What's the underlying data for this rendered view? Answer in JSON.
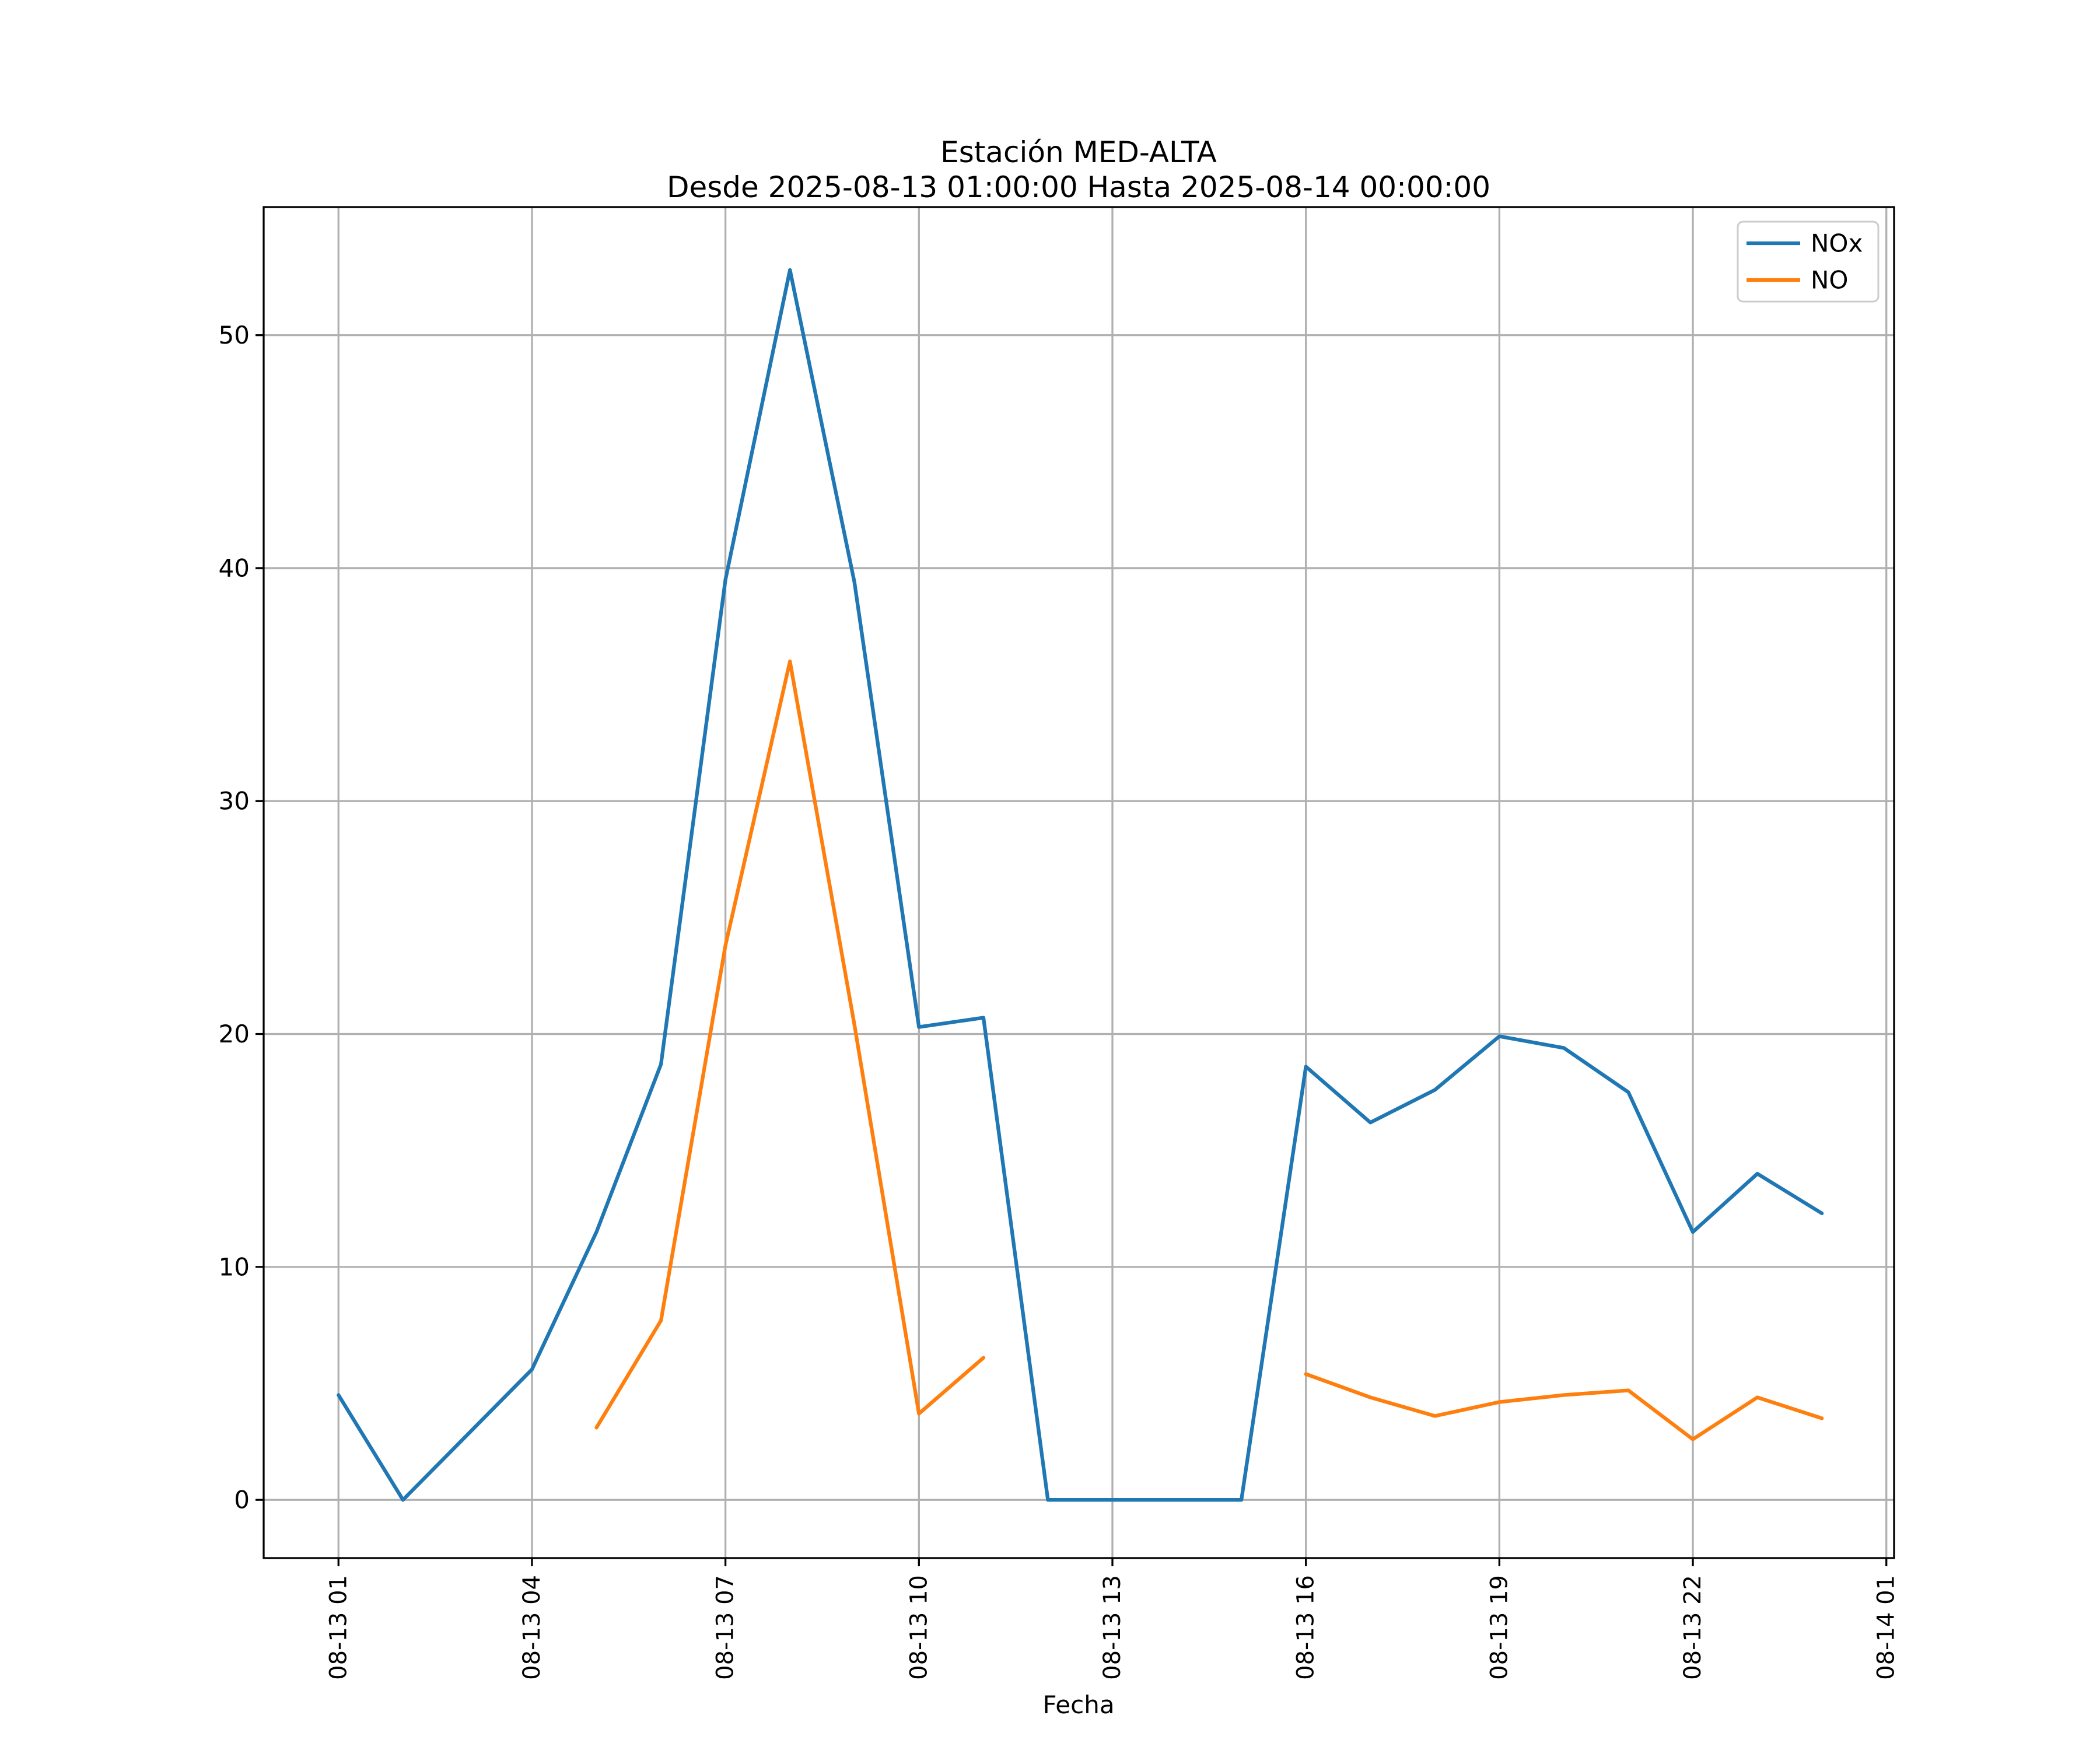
{
  "chart_data": {
    "type": "line",
    "title": "Estación MED-ALTA",
    "subtitle": "Desde 2025-08-13 01:00:00 Hasta 2025-08-14 00:00:00",
    "xlabel": "Fecha",
    "ylabel": "",
    "grid": true,
    "grid_color": "#b0b0b0",
    "spine_color": "#000000",
    "background_color": "#ffffff",
    "legend": {
      "position": "upper right",
      "entries": [
        {
          "label": "NOx",
          "color": "#1f77b4"
        },
        {
          "label": "NO",
          "color": "#ff7f0e"
        }
      ]
    },
    "x_axis": {
      "tick_hours": [
        1,
        4,
        7,
        10,
        13,
        16,
        19,
        22,
        25
      ],
      "tick_labels": [
        "08-13 01",
        "08-13 04",
        "08-13 07",
        "08-13 10",
        "08-13 13",
        "08-13 16",
        "08-13 19",
        "08-13 22",
        "08-14 01"
      ],
      "lim_hours": [
        -0.16,
        25.12
      ],
      "label_rotation_deg": 90
    },
    "y_axis": {
      "ticks": [
        0,
        10,
        20,
        30,
        40,
        50
      ],
      "lim": [
        -2.5,
        55.5
      ]
    },
    "series": [
      {
        "name": "NOx",
        "color": "#1f77b4",
        "segments": [
          [
            [
              1,
              4.5
            ],
            [
              2,
              0.0
            ],
            [
              3,
              2.8
            ],
            [
              4,
              5.6
            ],
            [
              5,
              11.5
            ],
            [
              6,
              18.7
            ],
            [
              7,
              39.5
            ],
            [
              8,
              52.8
            ],
            [
              9,
              39.4
            ],
            [
              10,
              20.3
            ],
            [
              11,
              20.7
            ],
            [
              12,
              0.0
            ],
            [
              13,
              0.0
            ],
            [
              14,
              0.0
            ],
            [
              15,
              0.0
            ],
            [
              16,
              18.6
            ],
            [
              17,
              16.2
            ],
            [
              18,
              17.6
            ],
            [
              19,
              19.9
            ],
            [
              20,
              19.4
            ],
            [
              21,
              17.5
            ],
            [
              22,
              11.5
            ],
            [
              23,
              14.0
            ],
            [
              24,
              12.3
            ]
          ]
        ]
      },
      {
        "name": "NO",
        "color": "#ff7f0e",
        "segments": [
          [
            [
              5,
              3.1
            ],
            [
              6,
              7.7
            ],
            [
              7,
              23.8
            ],
            [
              8,
              36.0
            ],
            [
              9,
              20.4
            ],
            [
              10,
              3.7
            ],
            [
              11,
              6.1
            ]
          ],
          [
            [
              16,
              5.4
            ],
            [
              17,
              4.4
            ],
            [
              18,
              3.6
            ],
            [
              19,
              4.2
            ],
            [
              20,
              4.5
            ],
            [
              21,
              4.7
            ],
            [
              22,
              2.6
            ],
            [
              23,
              4.4
            ],
            [
              24,
              3.5
            ]
          ]
        ]
      }
    ]
  }
}
